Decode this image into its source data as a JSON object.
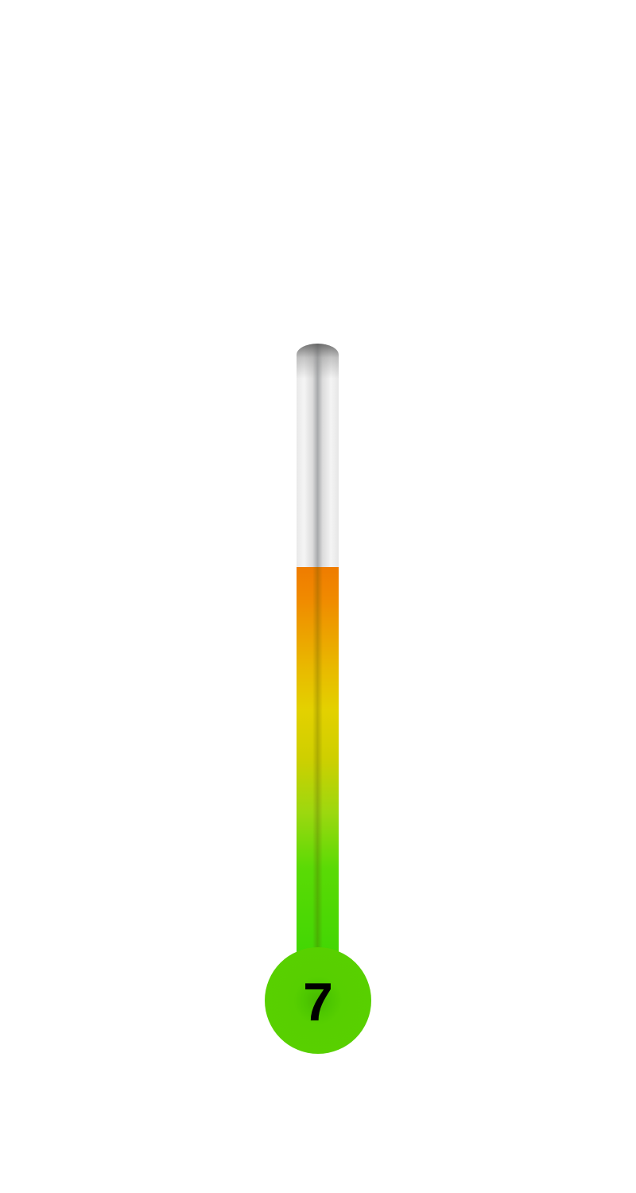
{
  "chart_data": {
    "type": "thermometer",
    "value": 7,
    "value_label": "7",
    "fill_fraction": 0.64,
    "colors": {
      "top": "#ef7c00",
      "middle": "#e3d100",
      "bottom": "#3fd603",
      "bulb": "#5ad000",
      "empty_tube": "#f0f0f0"
    }
  }
}
